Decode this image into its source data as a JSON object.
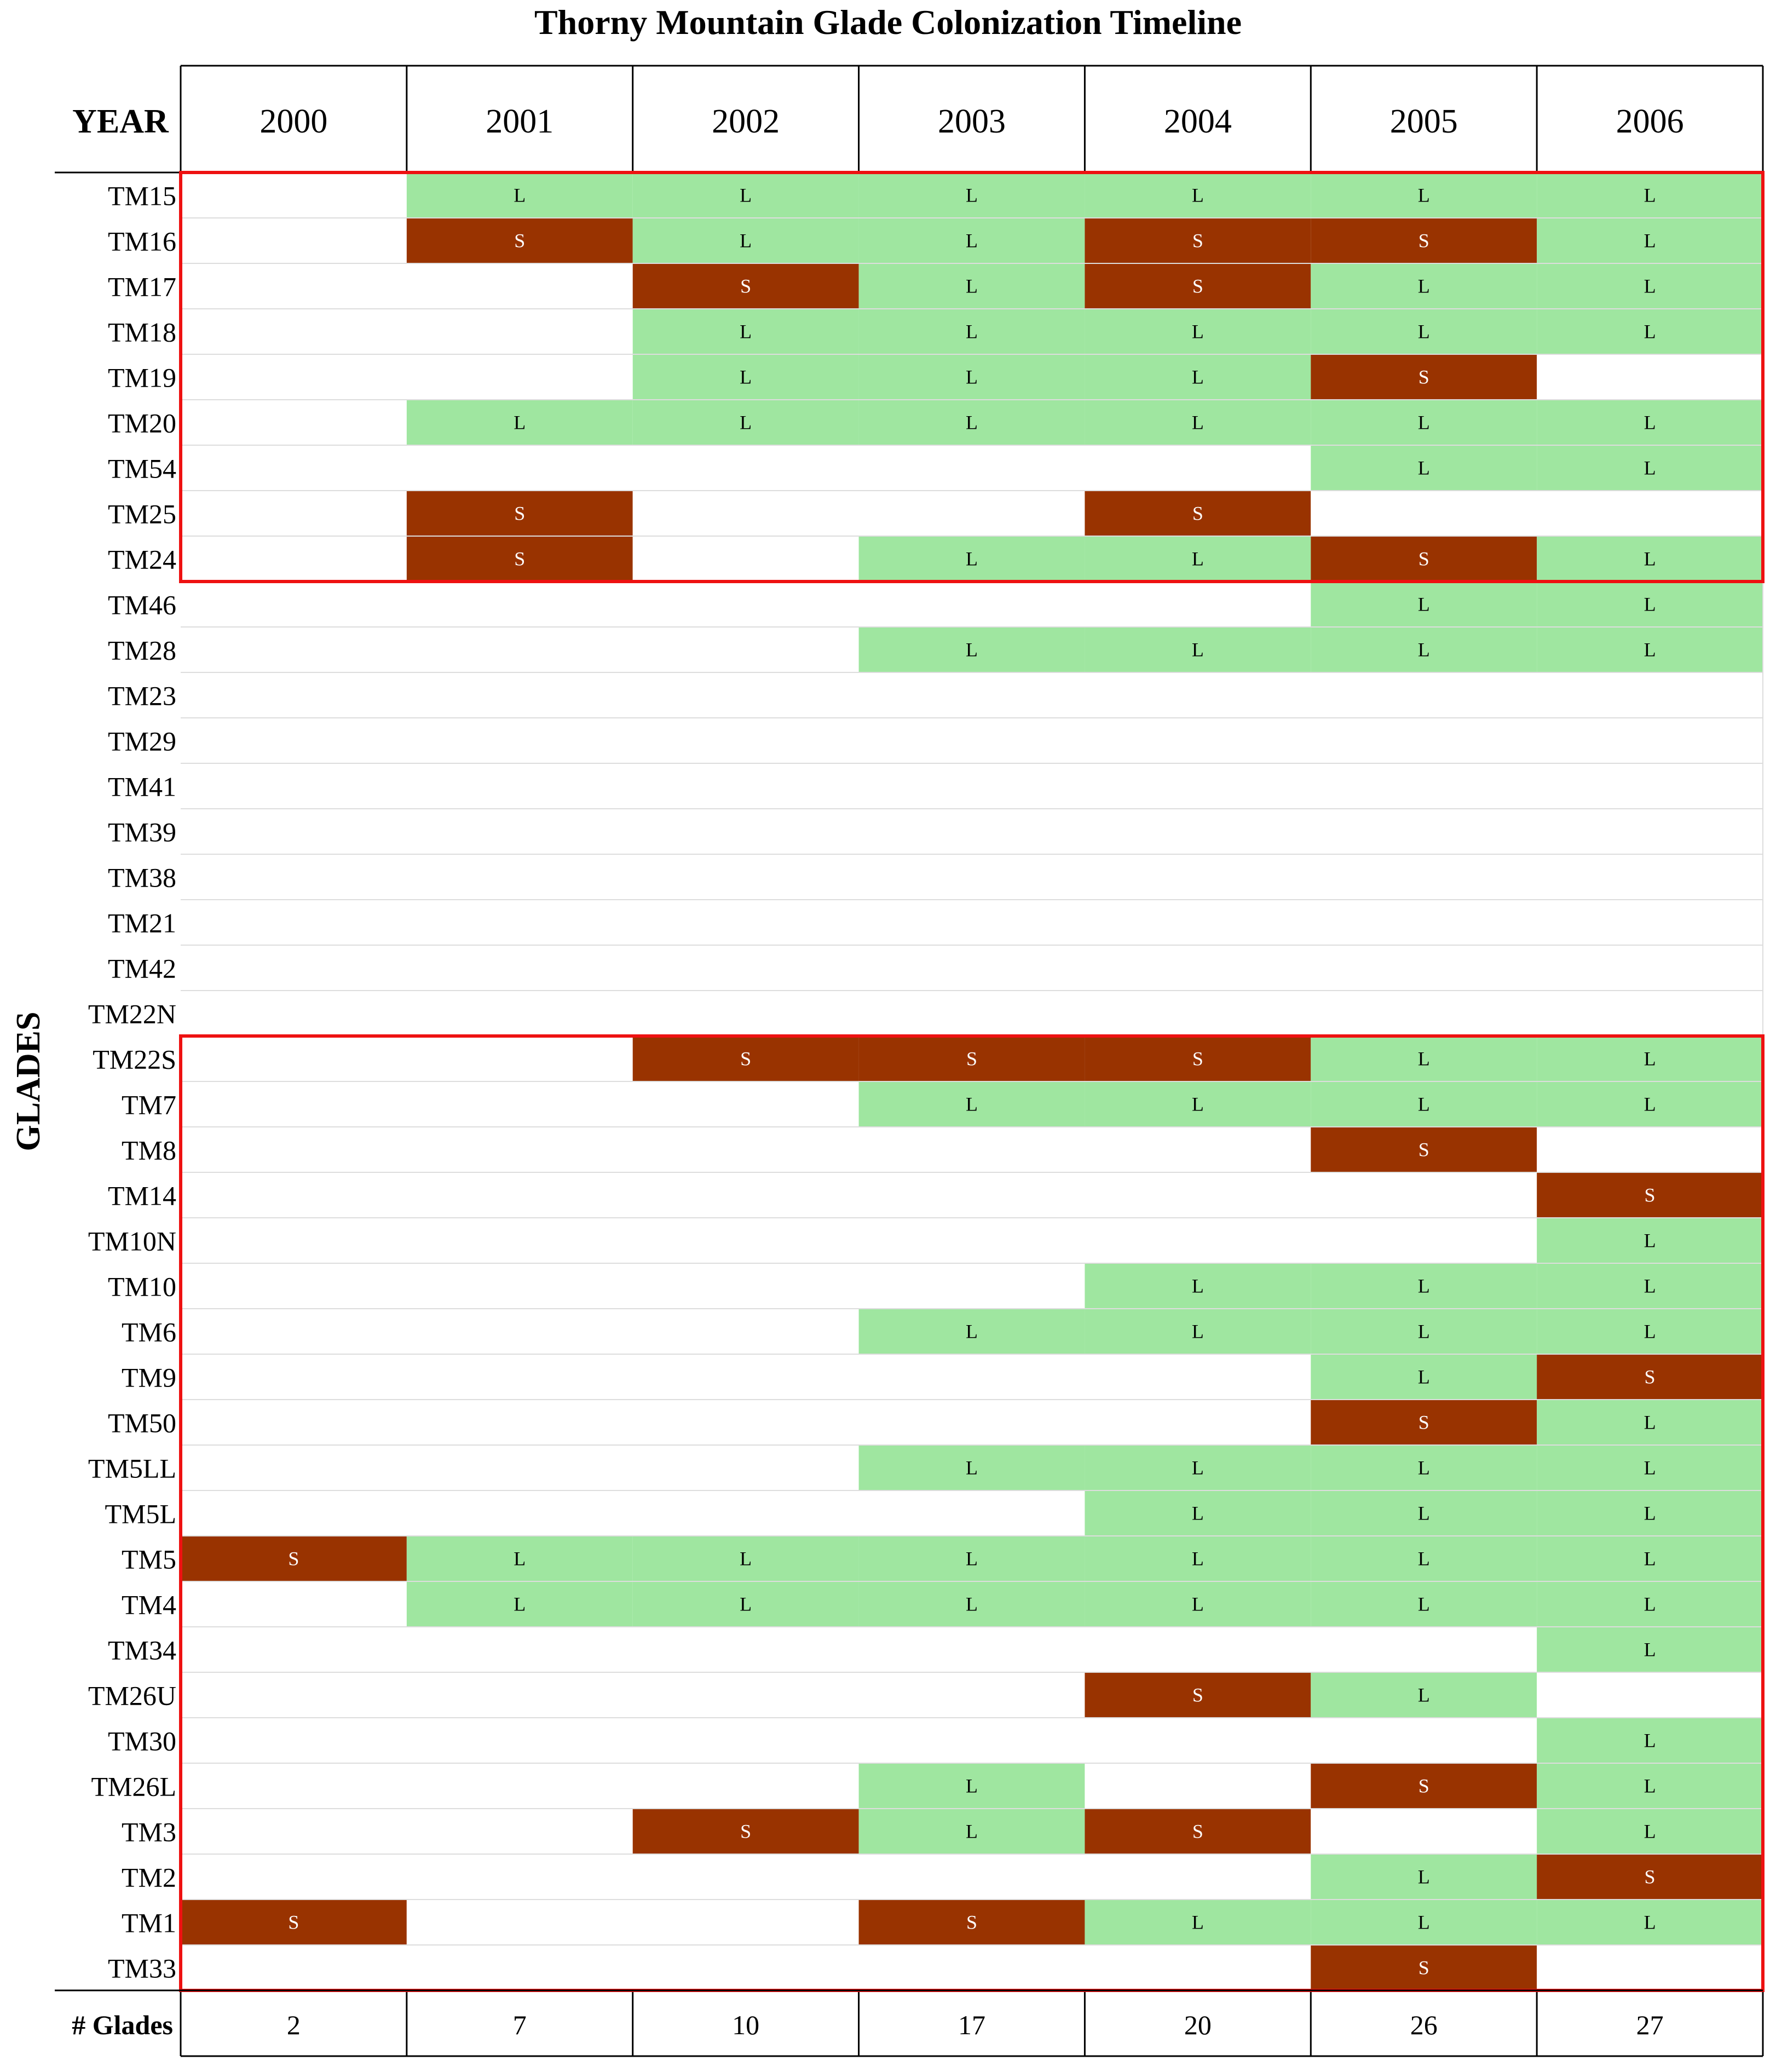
{
  "chart_data": {
    "type": "table",
    "title": "Thorny Mountain Glade Colonization Timeline",
    "column_header_label": "YEAR",
    "row_axis_label": "GLADES",
    "footer_label": "# Glades",
    "years": [
      "2000",
      "2001",
      "2002",
      "2003",
      "2004",
      "2005",
      "2006"
    ],
    "legend_codes": [
      "L",
      "S"
    ],
    "colors": {
      "L": "#9fe6a0",
      "S": "#993300",
      "empty": "#ffffff",
      "highlight_box": "#ee1111",
      "grid": "#dddddd"
    },
    "rows": [
      {
        "glade": "TM15",
        "status": [
          "",
          "L",
          "L",
          "L",
          "L",
          "L",
          "L"
        ]
      },
      {
        "glade": "TM16",
        "status": [
          "",
          "S",
          "L",
          "L",
          "S",
          "S",
          "L"
        ]
      },
      {
        "glade": "TM17",
        "status": [
          "",
          "",
          "S",
          "L",
          "S",
          "L",
          "L"
        ]
      },
      {
        "glade": "TM18",
        "status": [
          "",
          "",
          "L",
          "L",
          "L",
          "L",
          "L"
        ]
      },
      {
        "glade": "TM19",
        "status": [
          "",
          "",
          "L",
          "L",
          "L",
          "S",
          ""
        ]
      },
      {
        "glade": "TM20",
        "status": [
          "",
          "L",
          "L",
          "L",
          "L",
          "L",
          "L"
        ]
      },
      {
        "glade": "TM54",
        "status": [
          "",
          "",
          "",
          "",
          "",
          "L",
          "L"
        ]
      },
      {
        "glade": "TM25",
        "status": [
          "",
          "S",
          "",
          "",
          "S",
          "",
          ""
        ]
      },
      {
        "glade": "TM24",
        "status": [
          "",
          "S",
          "",
          "L",
          "L",
          "S",
          "L"
        ]
      },
      {
        "glade": "TM46",
        "status": [
          "",
          "",
          "",
          "",
          "",
          "L",
          "L"
        ]
      },
      {
        "glade": "TM28",
        "status": [
          "",
          "",
          "",
          "L",
          "L",
          "L",
          "L"
        ]
      },
      {
        "glade": "TM23",
        "status": [
          "",
          "",
          "",
          "",
          "",
          "",
          ""
        ]
      },
      {
        "glade": "TM29",
        "status": [
          "",
          "",
          "",
          "",
          "",
          "",
          ""
        ]
      },
      {
        "glade": "TM41",
        "status": [
          "",
          "",
          "",
          "",
          "",
          "",
          ""
        ]
      },
      {
        "glade": "TM39",
        "status": [
          "",
          "",
          "",
          "",
          "",
          "",
          ""
        ]
      },
      {
        "glade": "TM38",
        "status": [
          "",
          "",
          "",
          "",
          "",
          "",
          ""
        ]
      },
      {
        "glade": "TM21",
        "status": [
          "",
          "",
          "",
          "",
          "",
          "",
          ""
        ]
      },
      {
        "glade": "TM42",
        "status": [
          "",
          "",
          "",
          "",
          "",
          "",
          ""
        ]
      },
      {
        "glade": "TM22N",
        "status": [
          "",
          "",
          "",
          "",
          "",
          "",
          ""
        ]
      },
      {
        "glade": "TM22S",
        "status": [
          "",
          "",
          "S",
          "S",
          "S",
          "L",
          "L"
        ]
      },
      {
        "glade": "TM7",
        "status": [
          "",
          "",
          "",
          "L",
          "L",
          "L",
          "L"
        ]
      },
      {
        "glade": "TM8",
        "status": [
          "",
          "",
          "",
          "",
          "",
          "S",
          ""
        ]
      },
      {
        "glade": "TM14",
        "status": [
          "",
          "",
          "",
          "",
          "",
          "",
          "S"
        ]
      },
      {
        "glade": "TM10N",
        "status": [
          "",
          "",
          "",
          "",
          "",
          "",
          "L"
        ]
      },
      {
        "glade": "TM10",
        "status": [
          "",
          "",
          "",
          "",
          "L",
          "L",
          "L"
        ]
      },
      {
        "glade": "TM6",
        "status": [
          "",
          "",
          "",
          "L",
          "L",
          "L",
          "L"
        ]
      },
      {
        "glade": "TM9",
        "status": [
          "",
          "",
          "",
          "",
          "",
          "L",
          "S"
        ]
      },
      {
        "glade": "TM50",
        "status": [
          "",
          "",
          "",
          "",
          "",
          "S",
          "L"
        ]
      },
      {
        "glade": "TM5LL",
        "status": [
          "",
          "",
          "",
          "L",
          "L",
          "L",
          "L"
        ]
      },
      {
        "glade": "TM5L",
        "status": [
          "",
          "",
          "",
          "",
          "L",
          "L",
          "L"
        ]
      },
      {
        "glade": "TM5",
        "status": [
          "S",
          "L",
          "L",
          "L",
          "L",
          "L",
          "L"
        ]
      },
      {
        "glade": "TM4",
        "status": [
          "",
          "L",
          "L",
          "L",
          "L",
          "L",
          "L"
        ]
      },
      {
        "glade": "TM34",
        "status": [
          "",
          "",
          "",
          "",
          "",
          "",
          "L"
        ]
      },
      {
        "glade": "TM26U",
        "status": [
          "",
          "",
          "",
          "",
          "S",
          "L",
          ""
        ]
      },
      {
        "glade": "TM30",
        "status": [
          "",
          "",
          "",
          "",
          "",
          "",
          "L"
        ]
      },
      {
        "glade": "TM26L",
        "status": [
          "",
          "",
          "",
          "L",
          "",
          "S",
          "L"
        ]
      },
      {
        "glade": "TM3",
        "status": [
          "",
          "",
          "S",
          "L",
          "S",
          "",
          "L"
        ]
      },
      {
        "glade": "TM2",
        "status": [
          "",
          "",
          "",
          "",
          "",
          "L",
          "S"
        ]
      },
      {
        "glade": "TM1",
        "status": [
          "S",
          "",
          "",
          "S",
          "L",
          "L",
          "L"
        ]
      },
      {
        "glade": "TM33",
        "status": [
          "",
          "",
          "",
          "",
          "",
          "S",
          ""
        ]
      }
    ],
    "glade_counts": [
      "2",
      "7",
      "10",
      "17",
      "20",
      "26",
      "27"
    ],
    "highlight_groups": [
      {
        "first_row": "TM15",
        "last_row": "TM24"
      },
      {
        "first_row": "TM22S",
        "last_row": "TM33"
      }
    ]
  }
}
